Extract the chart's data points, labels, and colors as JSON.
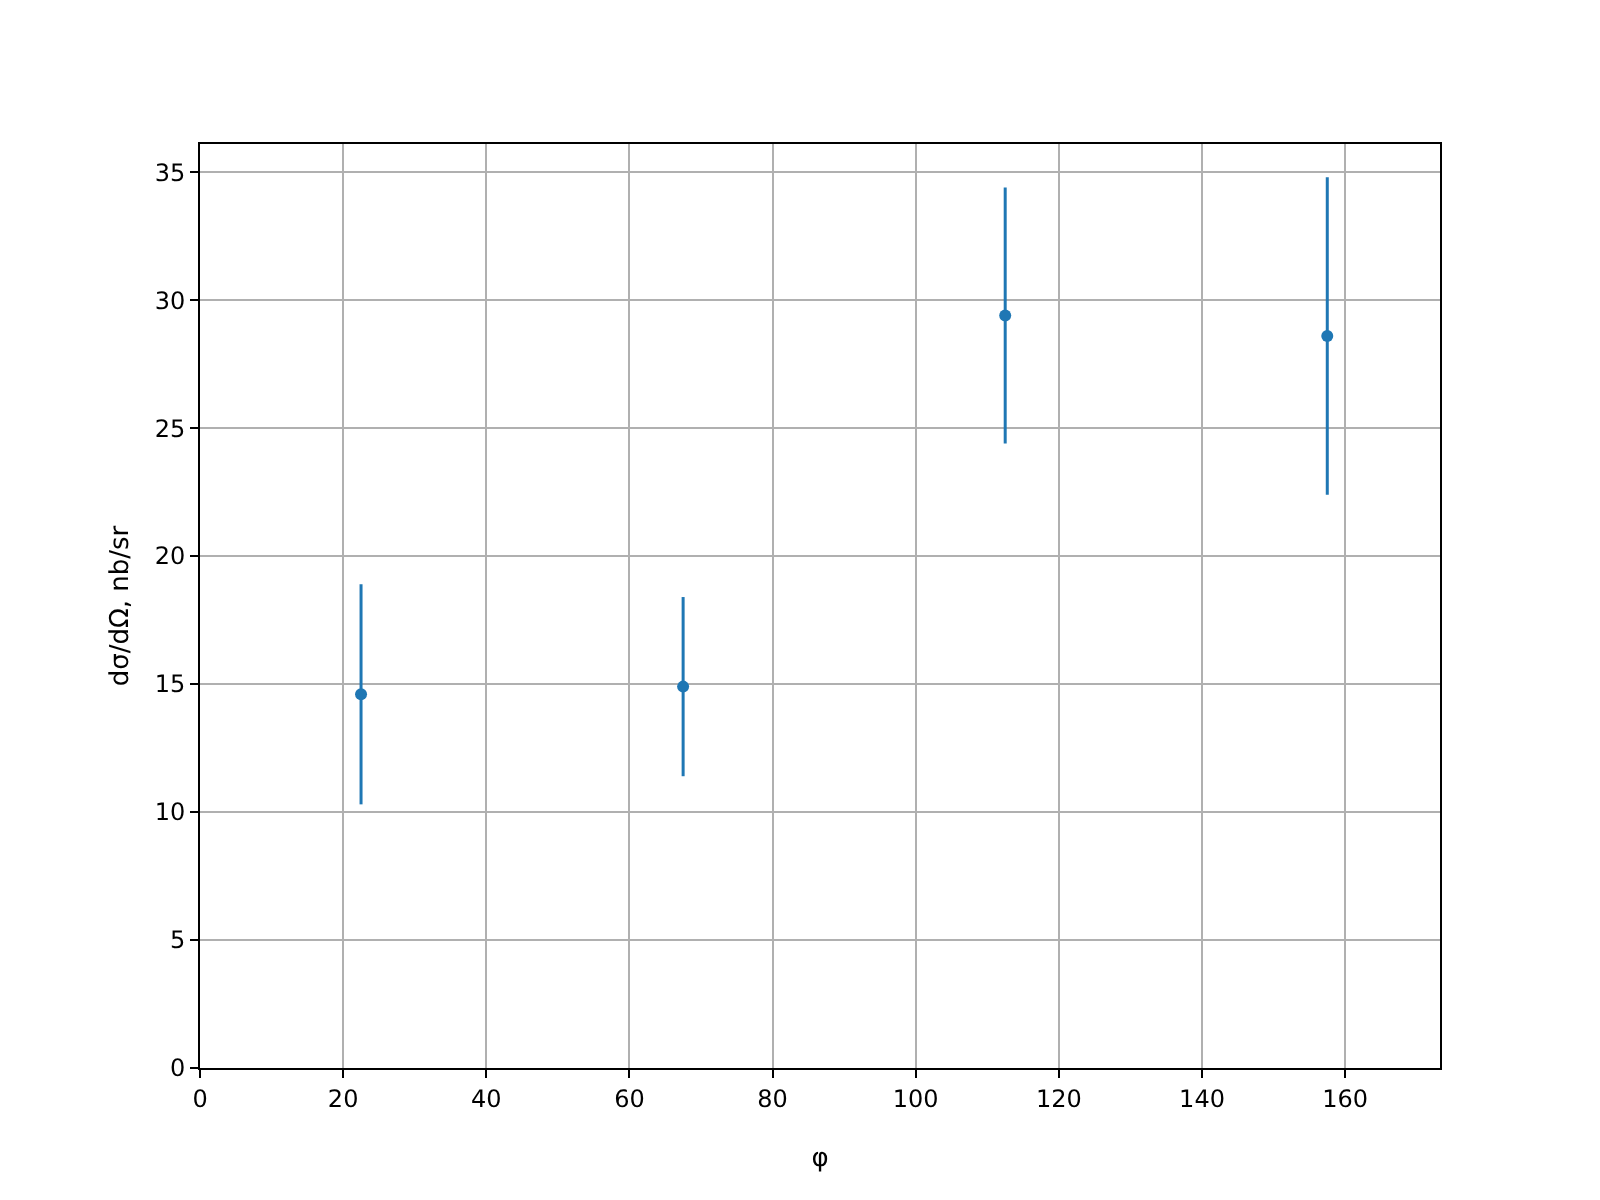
{
  "chart_data": {
    "type": "scatter",
    "xlabel": "φ",
    "ylabel": "dσ/dΩ, nb/sr",
    "x": [
      22.5,
      67.5,
      112.5,
      157.5
    ],
    "series": [
      {
        "color": "#1f77b4",
        "values": [
          14.6,
          14.9,
          29.4,
          28.6
        ],
        "errors": [
          4.3,
          3.5,
          5.0,
          6.2
        ]
      }
    ],
    "xlim": [
      0,
      173.25
    ],
    "xticks": [
      0,
      20,
      40,
      60,
      80,
      100,
      120,
      140,
      160
    ],
    "ylim": [
      0,
      36.1
    ],
    "yticks": [
      0,
      5,
      10,
      15,
      20,
      25,
      30,
      35
    ],
    "grid": true,
    "marker": "circle"
  }
}
